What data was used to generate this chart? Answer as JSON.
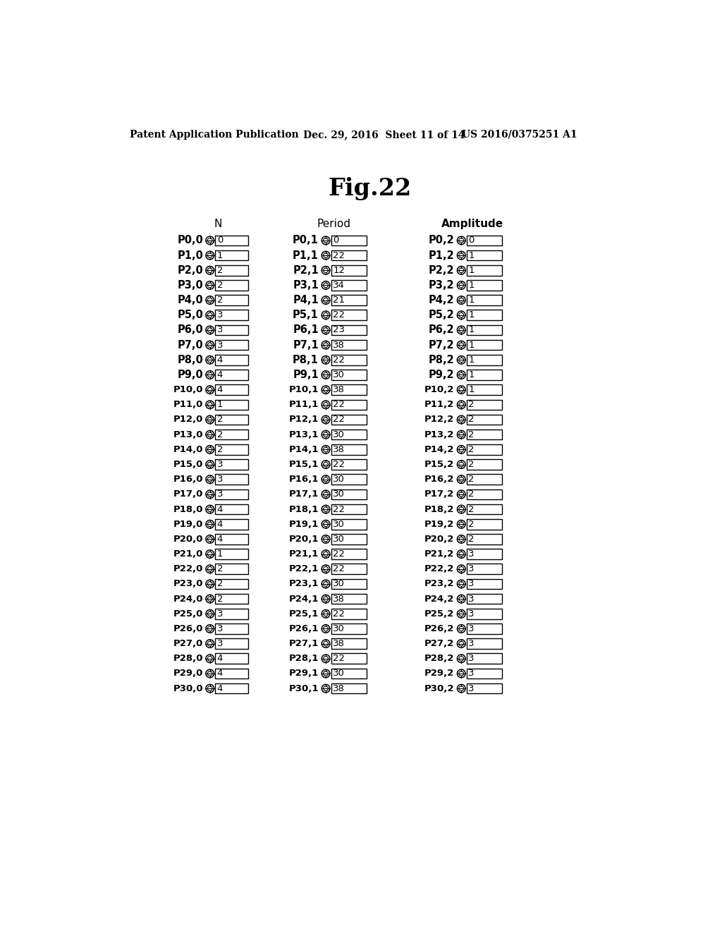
{
  "header_left": "Patent Application Publication",
  "header_mid": "Dec. 29, 2016  Sheet 11 of 14",
  "header_right": "US 2016/0375251 A1",
  "fig_title": "Fig.22",
  "rows": [
    {
      "p": 0,
      "n": 0,
      "period": 0,
      "amplitude": 0
    },
    {
      "p": 1,
      "n": 1,
      "period": 22,
      "amplitude": 1
    },
    {
      "p": 2,
      "n": 2,
      "period": 12,
      "amplitude": 1
    },
    {
      "p": 3,
      "n": 2,
      "period": 34,
      "amplitude": 1
    },
    {
      "p": 4,
      "n": 2,
      "period": 21,
      "amplitude": 1
    },
    {
      "p": 5,
      "n": 3,
      "period": 22,
      "amplitude": 1
    },
    {
      "p": 6,
      "n": 3,
      "period": 23,
      "amplitude": 1
    },
    {
      "p": 7,
      "n": 3,
      "period": 38,
      "amplitude": 1
    },
    {
      "p": 8,
      "n": 4,
      "period": 22,
      "amplitude": 1
    },
    {
      "p": 9,
      "n": 4,
      "period": 30,
      "amplitude": 1
    },
    {
      "p": 10,
      "n": 4,
      "period": 38,
      "amplitude": 1
    },
    {
      "p": 11,
      "n": 1,
      "period": 22,
      "amplitude": 2
    },
    {
      "p": 12,
      "n": 2,
      "period": 22,
      "amplitude": 2
    },
    {
      "p": 13,
      "n": 2,
      "period": 30,
      "amplitude": 2
    },
    {
      "p": 14,
      "n": 2,
      "period": 38,
      "amplitude": 2
    },
    {
      "p": 15,
      "n": 3,
      "period": 22,
      "amplitude": 2
    },
    {
      "p": 16,
      "n": 3,
      "period": 30,
      "amplitude": 2
    },
    {
      "p": 17,
      "n": 3,
      "period": 30,
      "amplitude": 2
    },
    {
      "p": 18,
      "n": 4,
      "period": 22,
      "amplitude": 2
    },
    {
      "p": 19,
      "n": 4,
      "period": 30,
      "amplitude": 2
    },
    {
      "p": 20,
      "n": 4,
      "period": 30,
      "amplitude": 2
    },
    {
      "p": 21,
      "n": 1,
      "period": 22,
      "amplitude": 3
    },
    {
      "p": 22,
      "n": 2,
      "period": 22,
      "amplitude": 3
    },
    {
      "p": 23,
      "n": 2,
      "period": 30,
      "amplitude": 3
    },
    {
      "p": 24,
      "n": 2,
      "period": 38,
      "amplitude": 3
    },
    {
      "p": 25,
      "n": 3,
      "period": 22,
      "amplitude": 3
    },
    {
      "p": 26,
      "n": 3,
      "period": 30,
      "amplitude": 3
    },
    {
      "p": 27,
      "n": 3,
      "period": 38,
      "amplitude": 3
    },
    {
      "p": 28,
      "n": 4,
      "period": 22,
      "amplitude": 3
    },
    {
      "p": 29,
      "n": 4,
      "period": 30,
      "amplitude": 3
    },
    {
      "p": 30,
      "n": 4,
      "period": 38,
      "amplitude": 3
    }
  ]
}
